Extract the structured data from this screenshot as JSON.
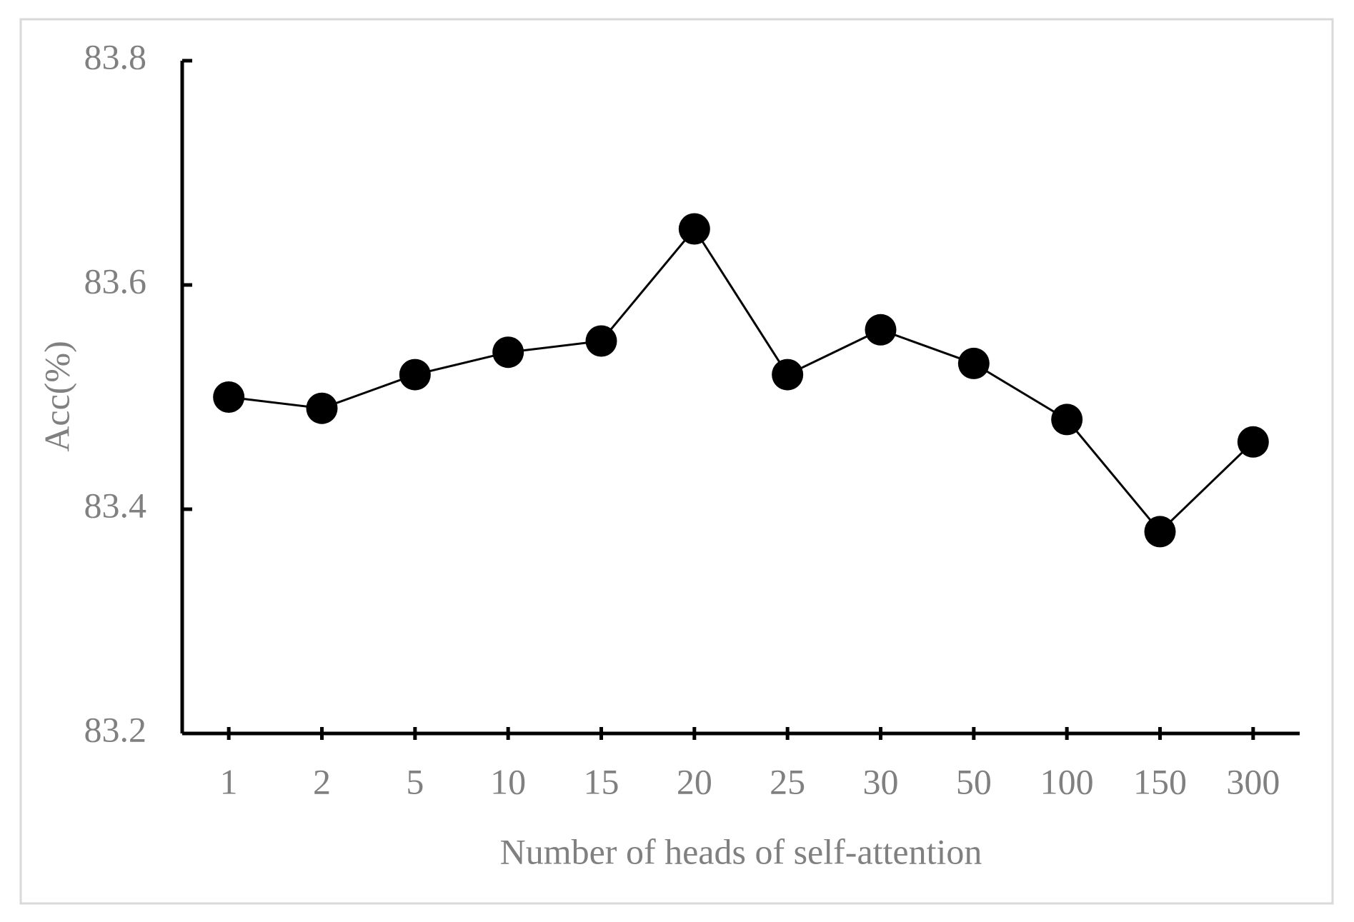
{
  "chart_data": {
    "type": "line",
    "x_label": "Number of heads of self-attention",
    "y_label": "Acc(%)",
    "categories": [
      "1",
      "2",
      "5",
      "10",
      "15",
      "20",
      "25",
      "30",
      "50",
      "100",
      "150",
      "300"
    ],
    "values": [
      83.5,
      83.49,
      83.52,
      83.54,
      83.55,
      83.65,
      83.52,
      83.56,
      83.53,
      83.48,
      83.38,
      83.46
    ],
    "color": "#000000",
    "ylim": [
      83.2,
      83.8
    ],
    "yticks": [
      83.2,
      83.4,
      83.6,
      83.8
    ],
    "grid": false
  }
}
